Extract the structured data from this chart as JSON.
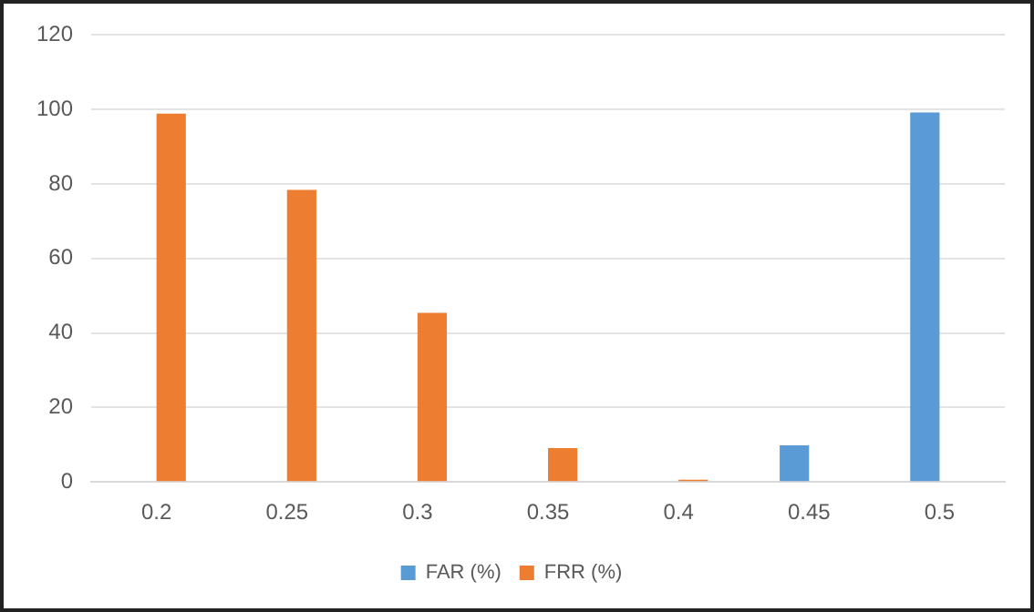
{
  "chart_data": {
    "type": "bar",
    "categories": [
      "0.2",
      "0.25",
      "0.3",
      "0.35",
      "0.4",
      "0.45",
      "0.5"
    ],
    "series": [
      {
        "name": "FAR (%)",
        "color": "#5b9bd5",
        "values": [
          0,
          0,
          0,
          0,
          0,
          9.8,
          99.2
        ]
      },
      {
        "name": "FRR (%)",
        "color": "#ed7d31",
        "values": [
          98.9,
          78.4,
          45.4,
          9.1,
          0.6,
          0,
          0
        ]
      }
    ],
    "ylim": [
      0,
      120
    ],
    "yticks": [
      0,
      20,
      40,
      60,
      80,
      100,
      120
    ],
    "grid": "y",
    "legend": "bottom"
  }
}
